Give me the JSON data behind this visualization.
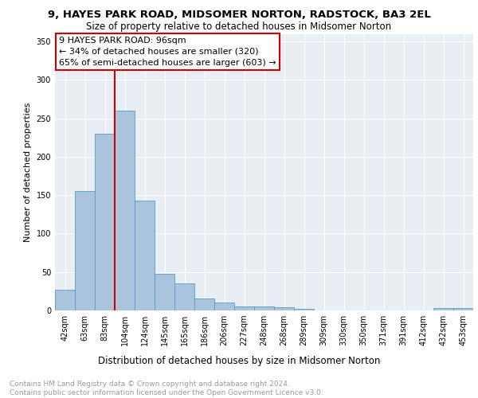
{
  "title1": "9, HAYES PARK ROAD, MIDSOMER NORTON, RADSTOCK, BA3 2EL",
  "title2": "Size of property relative to detached houses in Midsomer Norton",
  "xlabel": "Distribution of detached houses by size in Midsomer Norton",
  "ylabel": "Number of detached properties",
  "categories": [
    "42sqm",
    "63sqm",
    "83sqm",
    "104sqm",
    "124sqm",
    "145sqm",
    "165sqm",
    "186sqm",
    "206sqm",
    "227sqm",
    "248sqm",
    "268sqm",
    "289sqm",
    "309sqm",
    "330sqm",
    "350sqm",
    "371sqm",
    "391sqm",
    "412sqm",
    "432sqm",
    "453sqm"
  ],
  "values": [
    27,
    155,
    230,
    260,
    143,
    48,
    35,
    16,
    10,
    5,
    5,
    4,
    2,
    0,
    0,
    0,
    0,
    0,
    0,
    3,
    3
  ],
  "bar_color": "#aac4de",
  "bar_edge_color": "#5a9ac5",
  "vline_x": 2.5,
  "vline_color": "#cc0000",
  "annotation_line1": "9 HAYES PARK ROAD: 96sqm",
  "annotation_line2": "← 34% of detached houses are smaller (320)",
  "annotation_line3": "65% of semi-detached houses are larger (603) →",
  "annotation_box_color": "#cc0000",
  "background_color": "#e8eef4",
  "grid_color": "#ffffff",
  "ylim": [
    0,
    360
  ],
  "yticks": [
    0,
    50,
    100,
    150,
    200,
    250,
    300,
    350
  ],
  "footer_text": "Contains HM Land Registry data © Crown copyright and database right 2024.\nContains public sector information licensed under the Open Government Licence v3.0.",
  "title1_fontsize": 9.5,
  "title2_fontsize": 8.5,
  "xlabel_fontsize": 8.5,
  "ylabel_fontsize": 8,
  "tick_fontsize": 7,
  "annotation_fontsize": 8,
  "footer_fontsize": 6.5
}
